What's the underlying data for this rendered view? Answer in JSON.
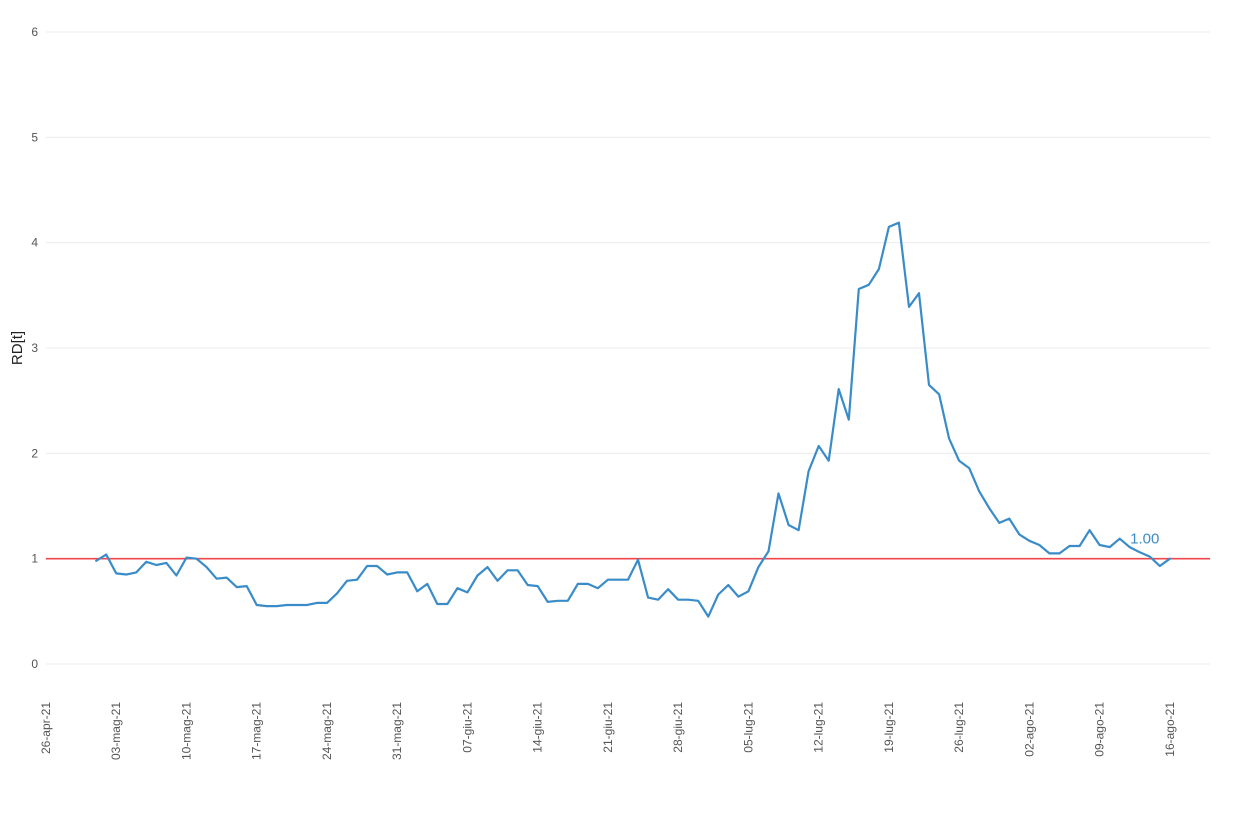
{
  "chart_data": {
    "type": "line",
    "title": "",
    "xlabel": "",
    "ylabel": "RD[t]",
    "ylim": [
      0,
      6
    ],
    "xlim": [
      "2021-04-26",
      "2021-08-20"
    ],
    "grid": "horizontal",
    "y_ticks": [
      "0",
      "1",
      "2",
      "3",
      "4",
      "5",
      "6"
    ],
    "x_ticks": [
      {
        "date": "2021-04-26",
        "label": "26-apr-21"
      },
      {
        "date": "2021-05-03",
        "label": "03-mag-21"
      },
      {
        "date": "2021-05-10",
        "label": "10-mag-21"
      },
      {
        "date": "2021-05-17",
        "label": "17-mag-21"
      },
      {
        "date": "2021-05-24",
        "label": "24-mag-21"
      },
      {
        "date": "2021-05-31",
        "label": "31-mag-21"
      },
      {
        "date": "2021-06-07",
        "label": "07-giu-21"
      },
      {
        "date": "2021-06-14",
        "label": "14-giu-21"
      },
      {
        "date": "2021-06-21",
        "label": "21-giu-21"
      },
      {
        "date": "2021-06-28",
        "label": "28-giu-21"
      },
      {
        "date": "2021-07-05",
        "label": "05-lug-21"
      },
      {
        "date": "2021-07-12",
        "label": "12-lug-21"
      },
      {
        "date": "2021-07-19",
        "label": "19-lug-21"
      },
      {
        "date": "2021-07-26",
        "label": "26-lug-21"
      },
      {
        "date": "2021-08-02",
        "label": "02-ago-21"
      },
      {
        "date": "2021-08-09",
        "label": "09-ago-21"
      },
      {
        "date": "2021-08-16",
        "label": "16-ago-21"
      }
    ],
    "reference_line": {
      "y": 1,
      "color": "#f0464b"
    },
    "annotation": {
      "text": "1.00",
      "x": "2021-08-13",
      "y": 1.0,
      "color": "#3a8cc9"
    },
    "series": [
      {
        "color": "#3a8cc9",
        "points": [
          [
            "2021-05-01",
            0.98
          ],
          [
            "2021-05-02",
            1.04
          ],
          [
            "2021-05-03",
            0.86
          ],
          [
            "2021-05-04",
            0.85
          ],
          [
            "2021-05-05",
            0.87
          ],
          [
            "2021-05-06",
            0.97
          ],
          [
            "2021-05-07",
            0.94
          ],
          [
            "2021-05-08",
            0.96
          ],
          [
            "2021-05-09",
            0.84
          ],
          [
            "2021-05-10",
            1.01
          ],
          [
            "2021-05-11",
            1.0
          ],
          [
            "2021-05-12",
            0.92
          ],
          [
            "2021-05-13",
            0.81
          ],
          [
            "2021-05-14",
            0.82
          ],
          [
            "2021-05-15",
            0.73
          ],
          [
            "2021-05-16",
            0.74
          ],
          [
            "2021-05-17",
            0.56
          ],
          [
            "2021-05-18",
            0.55
          ],
          [
            "2021-05-19",
            0.55
          ],
          [
            "2021-05-20",
            0.56
          ],
          [
            "2021-05-21",
            0.56
          ],
          [
            "2021-05-22",
            0.56
          ],
          [
            "2021-05-23",
            0.58
          ],
          [
            "2021-05-24",
            0.58
          ],
          [
            "2021-05-25",
            0.67
          ],
          [
            "2021-05-26",
            0.79
          ],
          [
            "2021-05-27",
            0.8
          ],
          [
            "2021-05-28",
            0.93
          ],
          [
            "2021-05-29",
            0.93
          ],
          [
            "2021-05-30",
            0.85
          ],
          [
            "2021-05-31",
            0.87
          ],
          [
            "2021-06-01",
            0.87
          ],
          [
            "2021-06-02",
            0.69
          ],
          [
            "2021-06-03",
            0.76
          ],
          [
            "2021-06-04",
            0.57
          ],
          [
            "2021-06-05",
            0.57
          ],
          [
            "2021-06-06",
            0.72
          ],
          [
            "2021-06-07",
            0.68
          ],
          [
            "2021-06-08",
            0.84
          ],
          [
            "2021-06-09",
            0.92
          ],
          [
            "2021-06-10",
            0.79
          ],
          [
            "2021-06-11",
            0.89
          ],
          [
            "2021-06-12",
            0.89
          ],
          [
            "2021-06-13",
            0.75
          ],
          [
            "2021-06-14",
            0.74
          ],
          [
            "2021-06-15",
            0.59
          ],
          [
            "2021-06-16",
            0.6
          ],
          [
            "2021-06-17",
            0.6
          ],
          [
            "2021-06-18",
            0.76
          ],
          [
            "2021-06-19",
            0.76
          ],
          [
            "2021-06-20",
            0.72
          ],
          [
            "2021-06-21",
            0.8
          ],
          [
            "2021-06-22",
            0.8
          ],
          [
            "2021-06-23",
            0.8
          ],
          [
            "2021-06-24",
            0.99
          ],
          [
            "2021-06-25",
            0.63
          ],
          [
            "2021-06-26",
            0.61
          ],
          [
            "2021-06-27",
            0.71
          ],
          [
            "2021-06-28",
            0.61
          ],
          [
            "2021-06-29",
            0.61
          ],
          [
            "2021-06-30",
            0.6
          ],
          [
            "2021-07-01",
            0.45
          ],
          [
            "2021-07-02",
            0.66
          ],
          [
            "2021-07-03",
            0.75
          ],
          [
            "2021-07-04",
            0.64
          ],
          [
            "2021-07-05",
            0.69
          ],
          [
            "2021-07-06",
            0.92
          ],
          [
            "2021-07-07",
            1.07
          ],
          [
            "2021-07-08",
            1.62
          ],
          [
            "2021-07-09",
            1.32
          ],
          [
            "2021-07-10",
            1.27
          ],
          [
            "2021-07-11",
            1.83
          ],
          [
            "2021-07-12",
            2.07
          ],
          [
            "2021-07-13",
            1.93
          ],
          [
            "2021-07-14",
            2.61
          ],
          [
            "2021-07-15",
            2.32
          ],
          [
            "2021-07-16",
            3.56
          ],
          [
            "2021-07-17",
            3.6
          ],
          [
            "2021-07-18",
            3.75
          ],
          [
            "2021-07-19",
            4.15
          ],
          [
            "2021-07-20",
            4.19
          ],
          [
            "2021-07-21",
            3.39
          ],
          [
            "2021-07-22",
            3.52
          ],
          [
            "2021-07-23",
            2.65
          ],
          [
            "2021-07-24",
            2.56
          ],
          [
            "2021-07-25",
            2.14
          ],
          [
            "2021-07-26",
            1.93
          ],
          [
            "2021-07-27",
            1.86
          ],
          [
            "2021-07-28",
            1.64
          ],
          [
            "2021-07-29",
            1.48
          ],
          [
            "2021-07-30",
            1.34
          ],
          [
            "2021-07-31",
            1.38
          ],
          [
            "2021-08-01",
            1.23
          ],
          [
            "2021-08-02",
            1.17
          ],
          [
            "2021-08-03",
            1.13
          ],
          [
            "2021-08-04",
            1.05
          ],
          [
            "2021-08-05",
            1.05
          ],
          [
            "2021-08-06",
            1.12
          ],
          [
            "2021-08-07",
            1.12
          ],
          [
            "2021-08-08",
            1.27
          ],
          [
            "2021-08-09",
            1.13
          ],
          [
            "2021-08-10",
            1.11
          ],
          [
            "2021-08-11",
            1.19
          ],
          [
            "2021-08-12",
            1.11
          ],
          [
            "2021-08-13",
            1.06
          ],
          [
            "2021-08-14",
            1.02
          ],
          [
            "2021-08-15",
            0.93
          ],
          [
            "2021-08-16",
            1.0
          ]
        ]
      }
    ]
  }
}
